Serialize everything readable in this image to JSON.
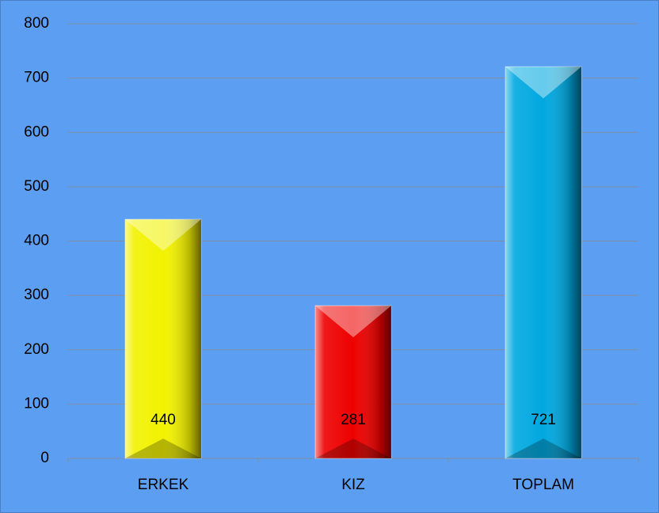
{
  "chart_data": {
    "type": "bar",
    "categories": [
      "ERKEK",
      "KIZ",
      "TOPLAM"
    ],
    "values": [
      440,
      281,
      721
    ],
    "colors": [
      "#f2f200",
      "#ee0000",
      "#00a8e0"
    ],
    "ylim": [
      0,
      800
    ],
    "yticks": [
      0,
      100,
      200,
      300,
      400,
      500,
      600,
      700,
      800
    ],
    "grid": true
  }
}
